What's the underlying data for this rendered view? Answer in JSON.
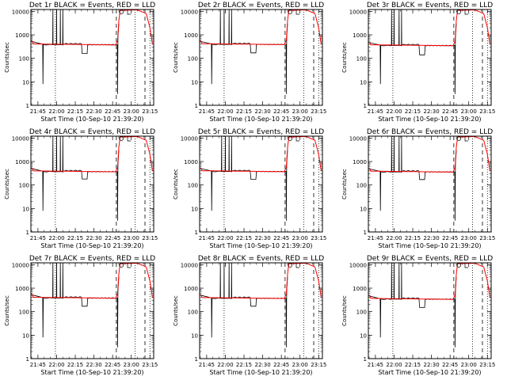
{
  "chart_data": {
    "type": "line",
    "layout": "3x3 grid",
    "ylabel": "Counts/sec",
    "xlabel": "Start Time (10-Sep-10 21:39:20)",
    "y_scale": "log",
    "ylim": [
      1,
      12000
    ],
    "xlim": [
      "21:39:20",
      "23:18:00"
    ],
    "y_ticks": [
      {
        "value": 1,
        "label": "1"
      },
      {
        "value": 10,
        "label": "10"
      },
      {
        "value": 100,
        "label": "100"
      },
      {
        "value": 1000,
        "label": "1000"
      },
      {
        "value": 10000,
        "label": "10000"
      }
    ],
    "x_ticks": [
      "21:45",
      "22:00",
      "22:15",
      "22:30",
      "22:45",
      "23:00",
      "23:15"
    ],
    "series_colors": {
      "events": "#000000",
      "lld": "#ff0000"
    },
    "marker_lines": {
      "dotted": [
        "21:59",
        "23:03",
        "23:15"
      ],
      "dashed": [
        "22:48",
        "23:11"
      ]
    },
    "series_legend": "BLACK = Events, RED = LLD",
    "panels": [
      {
        "detector": "Det 1r",
        "title": "Det 1r BLACK = Events, RED = LLD",
        "base_level": 380,
        "initial_level": 560,
        "dip_level": 160,
        "spike_times": [
          "21:57",
          "22:00",
          "22:03",
          "22:05"
        ]
      },
      {
        "detector": "Det 2r",
        "title": "Det 2r BLACK = Events, RED = LLD",
        "base_level": 390,
        "initial_level": 560,
        "dip_level": 170,
        "spike_times": [
          "21:56",
          "21:59",
          "22:03",
          "22:05"
        ]
      },
      {
        "detector": "Det 3r",
        "title": "Det 3r BLACK = Events, RED = LLD",
        "base_level": 350,
        "initial_level": 500,
        "dip_level": 140,
        "spike_times": [
          "21:58",
          "22:00",
          "22:04",
          "22:06"
        ]
      },
      {
        "detector": "Det 4r",
        "title": "Det 4r BLACK = Events, RED = LLD",
        "base_level": 370,
        "initial_level": 540,
        "dip_level": 180,
        "spike_times": [
          "21:57",
          "22:00",
          "22:03",
          "22:05"
        ]
      },
      {
        "detector": "Det 5r",
        "title": "Det 5r BLACK = Events, RED = LLD",
        "base_level": 375,
        "initial_level": 540,
        "dip_level": 175,
        "spike_times": [
          "21:57",
          "22:00",
          "22:03",
          "22:05"
        ]
      },
      {
        "detector": "Det 6r",
        "title": "Det 6r BLACK = Events, RED = LLD",
        "base_level": 360,
        "initial_level": 520,
        "dip_level": 170,
        "spike_times": [
          "21:58",
          "22:00",
          "22:04",
          "22:06"
        ]
      },
      {
        "detector": "Det 7r",
        "title": "Det 7r BLACK = Events, RED = LLD",
        "base_level": 380,
        "initial_level": 560,
        "dip_level": 170,
        "spike_times": [
          "21:57",
          "22:00",
          "22:03",
          "22:05"
        ]
      },
      {
        "detector": "Det 8r",
        "title": "Det 8r BLACK = Events, RED = LLD",
        "base_level": 370,
        "initial_level": 540,
        "dip_level": 170,
        "spike_times": [
          "21:56",
          "21:59",
          "22:03",
          "22:05"
        ]
      },
      {
        "detector": "Det 9r",
        "title": "Det 9r BLACK = Events, RED = LLD",
        "base_level": 340,
        "initial_level": 500,
        "dip_level": 150,
        "spike_times": [
          "21:58",
          "22:00",
          "22:04",
          "22:06"
        ]
      }
    ]
  }
}
